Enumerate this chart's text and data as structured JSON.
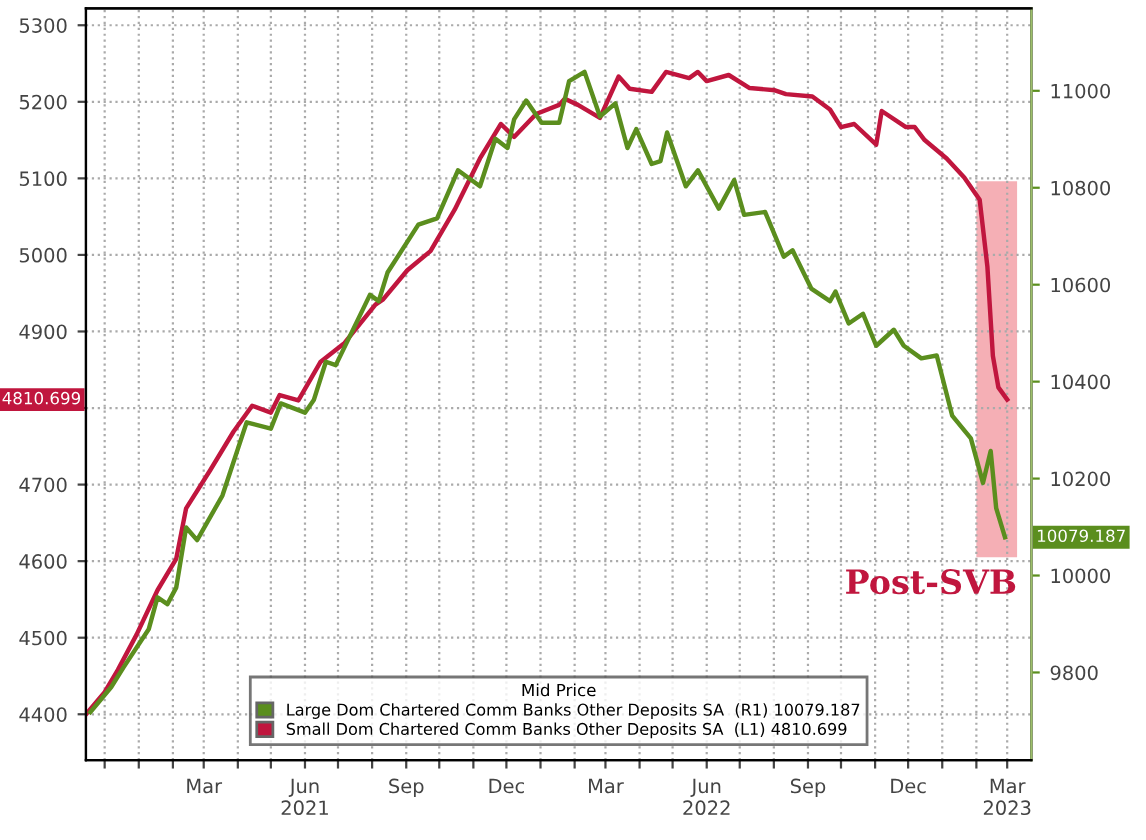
{
  "chart_data": {
    "type": "line",
    "series": [
      {
        "name": "Large Dom Chartered Comm Banks Other Deposits SA  (R1) 10079.187",
        "color": "#5b8e1e",
        "axis": "y2",
        "x": [
          "2020-11-18",
          "2020-12-07",
          "2020-12-18",
          "2021-01-10",
          "2021-01-18",
          "2021-01-27",
          "2021-02-04",
          "2021-02-13",
          "2021-02-23",
          "2021-03-18",
          "2021-04-09",
          "2021-05-01",
          "2021-05-10",
          "2021-06-01",
          "2021-06-09",
          "2021-06-20",
          "2021-06-29",
          "2021-07-30",
          "2021-08-07",
          "2021-08-15",
          "2021-09-12",
          "2021-09-29",
          "2021-10-18",
          "2021-11-07",
          "2021-11-21",
          "2021-12-02",
          "2021-12-08",
          "2021-12-19",
          "2022-01-02",
          "2022-01-18",
          "2022-01-27",
          "2022-02-10",
          "2022-02-24",
          "2022-03-10",
          "2022-03-21",
          "2022-03-29",
          "2022-04-12",
          "2022-04-20",
          "2022-04-26",
          "2022-05-13",
          "2022-05-24",
          "2022-06-12",
          "2022-06-26",
          "2022-07-05",
          "2022-07-24",
          "2022-08-10",
          "2022-08-18",
          "2022-09-04",
          "2022-09-21",
          "2022-09-26",
          "2022-10-08",
          "2022-10-21",
          "2022-11-02",
          "2022-11-18",
          "2022-11-27",
          "2022-12-13",
          "2022-12-27",
          "2023-01-10",
          "2023-01-27",
          "2023-02-07",
          "2023-02-14",
          "2023-02-19",
          "2023-02-27"
        ],
        "values": [
          9718,
          9770,
          9810,
          9889,
          9955,
          9941,
          9975,
          10099,
          10073,
          10165,
          10316,
          10303,
          10355,
          10336,
          10362,
          10441,
          10434,
          10579,
          10566,
          10625,
          10724,
          10737,
          10836,
          10803,
          10901,
          10882,
          10941,
          10980,
          10934,
          10934,
          11020,
          11039,
          10947,
          10974,
          10882,
          10921,
          10849,
          10855,
          10914,
          10803,
          10836,
          10757,
          10816,
          10744,
          10750,
          10658,
          10671,
          10592,
          10566,
          10586,
          10520,
          10540,
          10474,
          10507,
          10474,
          10448,
          10454,
          10330,
          10283,
          10191,
          10257,
          10139,
          10079
        ]
      },
      {
        "name": "Small Dom Chartered Comm Banks Other Deposits SA  (L1) 4810.699",
        "color": "#c0163e",
        "axis": "y",
        "x": [
          "2020-11-14",
          "2020-12-01",
          "2020-12-13",
          "2020-12-30",
          "2021-01-18",
          "2021-02-04",
          "2021-02-13",
          "2021-03-07",
          "2021-03-28",
          "2021-04-14",
          "2021-05-01",
          "2021-05-09",
          "2021-05-26",
          "2021-06-15",
          "2021-07-07",
          "2021-08-04",
          "2021-08-11",
          "2021-09-02",
          "2021-09-23",
          "2021-10-15",
          "2021-11-07",
          "2021-11-26",
          "2021-12-08",
          "2021-12-28",
          "2022-01-18",
          "2022-01-23",
          "2022-02-04",
          "2022-02-24",
          "2022-03-13",
          "2022-03-23",
          "2022-04-12",
          "2022-04-25",
          "2022-05-16",
          "2022-05-24",
          "2022-06-01",
          "2022-06-21",
          "2022-07-10",
          "2022-08-02",
          "2022-08-12",
          "2022-09-05",
          "2022-09-21",
          "2022-10-01",
          "2022-10-13",
          "2022-11-02",
          "2022-11-07",
          "2022-11-29",
          "2022-12-07",
          "2022-12-16",
          "2023-01-05",
          "2023-01-21",
          "2023-02-04",
          "2023-02-11",
          "2023-02-16",
          "2023-02-21",
          "2023-03-01"
        ],
        "values": [
          4400,
          4429,
          4458,
          4504,
          4562,
          4603,
          4669,
          4719,
          4769,
          4803,
          4794,
          4817,
          4810,
          4860,
          4885,
          4935,
          4942,
          4980,
          5005,
          5059,
          5126,
          5171,
          5154,
          5184,
          5196,
          5204,
          5196,
          5179,
          5233,
          5217,
          5213,
          5239,
          5231,
          5239,
          5227,
          5235,
          5218,
          5215,
          5210,
          5207,
          5190,
          5167,
          5171,
          5144,
          5188,
          5167,
          5167,
          5150,
          5126,
          5101,
          5072,
          4985,
          4868,
          4827,
          4811
        ]
      }
    ],
    "legend_title": "Mid Price",
    "legend": "bottom",
    "xlim": [
      "2020-11-14",
      "2023-03-23"
    ],
    "xticks": [
      {
        "value": "2020-12-01",
        "label": null
      },
      {
        "value": "2021-01-01",
        "label": null
      },
      {
        "value": "2021-02-01",
        "label": null
      },
      {
        "value": "2021-03-01",
        "label": "Mar"
      },
      {
        "value": "2021-04-01",
        "label": null
      },
      {
        "value": "2021-05-01",
        "label": null
      },
      {
        "value": "2021-06-01",
        "label": "Jun\n2021"
      },
      {
        "value": "2021-07-01",
        "label": null
      },
      {
        "value": "2021-08-01",
        "label": null
      },
      {
        "value": "2021-09-01",
        "label": "Sep"
      },
      {
        "value": "2021-10-01",
        "label": null
      },
      {
        "value": "2021-11-01",
        "label": null
      },
      {
        "value": "2021-12-01",
        "label": "Dec"
      },
      {
        "value": "2022-01-01",
        "label": null
      },
      {
        "value": "2022-02-01",
        "label": null
      },
      {
        "value": "2022-03-01",
        "label": "Mar"
      },
      {
        "value": "2022-04-01",
        "label": null
      },
      {
        "value": "2022-05-01",
        "label": null
      },
      {
        "value": "2022-06-01",
        "label": "Jun\n2022"
      },
      {
        "value": "2022-07-01",
        "label": null
      },
      {
        "value": "2022-08-01",
        "label": null
      },
      {
        "value": "2022-09-01",
        "label": "Sep"
      },
      {
        "value": "2022-10-01",
        "label": null
      },
      {
        "value": "2022-11-01",
        "label": null
      },
      {
        "value": "2022-12-01",
        "label": "Dec"
      },
      {
        "value": "2023-01-01",
        "label": null
      },
      {
        "value": "2023-02-01",
        "label": null
      },
      {
        "value": "2023-03-01",
        "label": "Mar\n2023"
      }
    ],
    "ylim": [
      4340,
      5322
    ],
    "yticks": [
      4400,
      4500,
      4600,
      4700,
      {
        "value": 4800,
        "label": null
      },
      4900,
      5000,
      5100,
      5200,
      5300
    ],
    "y2lim": [
      9619,
      11170
    ],
    "y2ticks": [
      9800,
      10000,
      10200,
      10400,
      10600,
      10800,
      11000
    ],
    "grid": true,
    "marker": "none",
    "line_style": "solid",
    "bands": [
      {
        "axis": "x",
        "from": "2023-02-01",
        "to": "2023-03-10",
        "label": "Post-SVB",
        "color": "#f4a6ad"
      }
    ],
    "annotations": [
      "10079.187",
      "4810.699"
    ]
  }
}
